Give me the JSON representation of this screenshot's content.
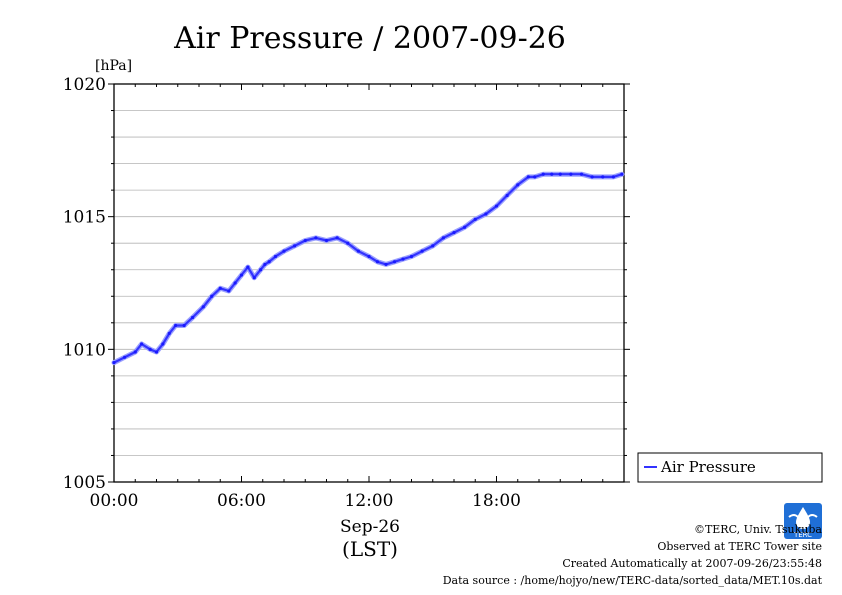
{
  "chart_data": {
    "type": "line",
    "title": "Air Pressure / 2007-09-26",
    "ylabel": "[hPa]",
    "xlabel": "Sep-26",
    "xlabel_sub": "(LST)",
    "ylim": [
      1005,
      1020
    ],
    "xlim": [
      0,
      24
    ],
    "yticks": [
      "1005",
      "1010",
      "1015",
      "1020"
    ],
    "ytick_values": [
      1005,
      1010,
      1015,
      1020
    ],
    "xticks": [
      "00:00",
      "06:00",
      "12:00",
      "18:00"
    ],
    "xtick_values": [
      0,
      6,
      12,
      18
    ],
    "grid": true,
    "legend_position": "right",
    "series": [
      {
        "name": "Air Pressure",
        "color": "#3333ff",
        "x": [
          0.0,
          0.5,
          1.0,
          1.3,
          1.7,
          2.0,
          2.3,
          2.6,
          2.9,
          3.3,
          3.7,
          4.2,
          4.6,
          5.0,
          5.4,
          5.7,
          6.0,
          6.3,
          6.6,
          6.9,
          7.1,
          7.3,
          7.6,
          8.0,
          8.5,
          9.0,
          9.5,
          10.0,
          10.5,
          11.0,
          11.5,
          12.0,
          12.4,
          12.8,
          13.2,
          13.6,
          14.0,
          14.5,
          15.0,
          15.5,
          16.0,
          16.5,
          17.0,
          17.5,
          18.0,
          18.5,
          19.0,
          19.5,
          19.8,
          20.2,
          20.6,
          21.0,
          21.5,
          22.0,
          22.5,
          23.0,
          23.5,
          23.9
        ],
        "values": [
          1009.5,
          1009.7,
          1009.9,
          1010.2,
          1010.0,
          1009.9,
          1010.2,
          1010.6,
          1010.9,
          1010.9,
          1011.2,
          1011.6,
          1012.0,
          1012.3,
          1012.2,
          1012.5,
          1012.8,
          1013.1,
          1012.7,
          1013.0,
          1013.2,
          1013.3,
          1013.5,
          1013.7,
          1013.9,
          1014.1,
          1014.2,
          1014.1,
          1014.2,
          1014.0,
          1013.7,
          1013.5,
          1013.3,
          1013.2,
          1013.3,
          1013.4,
          1013.5,
          1013.7,
          1013.9,
          1014.2,
          1014.4,
          1014.6,
          1014.9,
          1015.1,
          1015.4,
          1015.8,
          1016.2,
          1016.5,
          1016.5,
          1016.6,
          1016.6,
          1016.6,
          1016.6,
          1016.6,
          1016.5,
          1016.5,
          1016.5,
          1016.6
        ]
      }
    ]
  },
  "footer": {
    "copyright": "©TERC, Univ. Tsukuba",
    "observed": "Observed at TERC Tower site",
    "created": "Created Automatically at 2007-09-26/23:55:48",
    "source": "Data source : /home/hojyo/new/TERC-data/sorted_data/MET.10s.dat",
    "logo_text": "TERC"
  }
}
